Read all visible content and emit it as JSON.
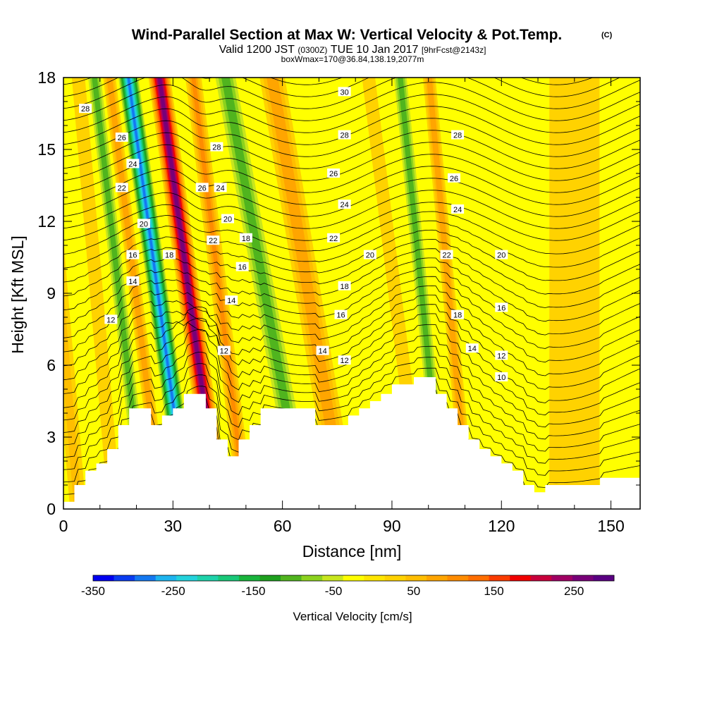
{
  "header": {
    "title": "Wind-Parallel Section at Max W: Vertical Velocity & Pot.Temp.",
    "copyright": "(C)",
    "line2_a": "Valid 1200 JST",
    "line2_b": "(0300Z)",
    "line2_c": "TUE 10 Jan 2017",
    "line2_d": "[9hrFcst@2143z]",
    "line3": "boxWmax=170@36.84,138.19,2077m"
  },
  "chart_data": {
    "type": "heatmap",
    "xlabel": "Distance [nm]",
    "ylabel": "Height [Kft MSL]",
    "xlim": [
      0,
      158
    ],
    "ylim": [
      0,
      18
    ],
    "xticks": [
      0,
      30,
      60,
      90,
      120,
      150
    ],
    "yticks": [
      0,
      3,
      6,
      9,
      12,
      15,
      18
    ],
    "colorbar": {
      "label": "Vertical Velocity [cm/s]",
      "range": [
        -350,
        300
      ],
      "tick_values": [
        -350,
        -250,
        -150,
        -50,
        50,
        150,
        250
      ],
      "tick_labels": [
        "-350",
        "-250",
        "-150",
        "-50",
        "50",
        "150",
        "250"
      ],
      "colors": [
        "#0000f0",
        "#0a3cf0",
        "#1478f0",
        "#1eb4ee",
        "#23d2dc",
        "#1ed2aa",
        "#19c878",
        "#19b43c",
        "#1ea01e",
        "#50b41e",
        "#8cd21e",
        "#c8e61e",
        "#ffff00",
        "#ffe600",
        "#ffd200",
        "#ffbe00",
        "#ffa500",
        "#ff8c00",
        "#ff6e00",
        "#fa3c00",
        "#f00000",
        "#c8003c",
        "#a00064",
        "#780078",
        "#5a0082"
      ]
    },
    "terrain_profile": {
      "x": [
        0,
        3,
        3,
        6,
        6,
        9,
        9,
        12,
        12,
        15,
        15,
        18,
        18,
        21,
        21,
        24,
        24,
        27,
        27,
        30,
        30,
        33,
        33,
        39,
        39,
        42,
        42,
        45,
        45,
        48,
        48,
        51,
        51,
        54,
        54,
        57,
        57,
        66,
        66,
        69,
        69,
        72,
        72,
        75,
        75,
        78,
        78,
        81,
        81,
        84,
        84,
        87,
        87,
        90,
        90,
        93,
        93,
        96,
        96,
        102,
        102,
        105,
        105,
        108,
        108,
        111,
        111,
        114,
        114,
        117,
        117,
        120,
        120,
        123,
        123,
        126,
        126,
        129,
        129,
        132,
        132,
        135,
        135,
        147,
        147,
        158
      ],
      "y": [
        0.3,
        0.3,
        1.0,
        1.0,
        1.6,
        1.6,
        1.9,
        1.9,
        2.5,
        2.5,
        3.5,
        3.5,
        4.2,
        4.2,
        4.2,
        4.2,
        3.5,
        3.5,
        3.9,
        3.9,
        4.2,
        4.2,
        4.8,
        4.8,
        4.2,
        4.2,
        2.9,
        2.9,
        2.2,
        2.2,
        2.9,
        2.9,
        3.5,
        3.5,
        4.2,
        4.2,
        4.2,
        4.2,
        4.2,
        4.2,
        3.5,
        3.5,
        3.5,
        3.5,
        3.5,
        3.5,
        3.9,
        3.9,
        4.2,
        4.2,
        4.5,
        4.5,
        4.8,
        4.8,
        5.2,
        5.2,
        5.2,
        5.2,
        5.5,
        5.5,
        4.8,
        4.8,
        4.2,
        4.2,
        3.5,
        3.5,
        2.9,
        2.9,
        2.5,
        2.5,
        2.2,
        2.2,
        1.9,
        1.9,
        1.6,
        1.6,
        1.0,
        1.0,
        0.7,
        0.7,
        1.0,
        1.0,
        1.0,
        1.0,
        1.3,
        1.3
      ]
    },
    "velocity_bands": [
      {
        "x_center": 4,
        "slope": -0.55,
        "width": 3,
        "w_cm_s": 50
      },
      {
        "x_center": 14,
        "slope": -0.55,
        "width": 3,
        "w_cm_s": 30
      },
      {
        "x_center": 22,
        "slope": -0.75,
        "width": 2.5,
        "w_cm_s": -110
      },
      {
        "x_center": 27,
        "slope": -0.8,
        "width": 2,
        "w_cm_s": 90
      },
      {
        "x_center": 34,
        "slope": -0.9,
        "width": 3,
        "w_cm_s": -280
      },
      {
        "x_center": 42.5,
        "slope": -0.9,
        "width": 3,
        "w_cm_s": 270
      },
      {
        "x_center": 50,
        "slope": -0.8,
        "width": 2.5,
        "w_cm_s": 100
      },
      {
        "x_center": 55,
        "slope": -0.7,
        "width": 3,
        "w_cm_s": -40
      },
      {
        "x_center": 66,
        "slope": -1.2,
        "width": 4,
        "w_cm_s": -110
      },
      {
        "x_center": 77,
        "slope": -1.1,
        "width": 4,
        "w_cm_s": 90
      },
      {
        "x_center": 98,
        "slope": -0.8,
        "width": 3,
        "w_cm_s": 30
      },
      {
        "x_center": 104,
        "slope": -0.65,
        "width": 2.5,
        "w_cm_s": -110
      },
      {
        "x_center": 111,
        "slope": -0.6,
        "width": 2,
        "w_cm_s": 90
      },
      {
        "x_center": 140,
        "slope": 0.0,
        "width": 10,
        "w_cm_s": 15
      }
    ],
    "theta_contour_labels": [
      {
        "text": "30",
        "x": 77,
        "y": 17.4
      },
      {
        "text": "28",
        "x": 6,
        "y": 16.7
      },
      {
        "text": "28",
        "x": 77,
        "y": 15.6
      },
      {
        "text": "28",
        "x": 42,
        "y": 15.1
      },
      {
        "text": "28",
        "x": 108,
        "y": 15.6
      },
      {
        "text": "26",
        "x": 16,
        "y": 15.5
      },
      {
        "text": "26",
        "x": 38,
        "y": 13.4
      },
      {
        "text": "26",
        "x": 74,
        "y": 14.0
      },
      {
        "text": "26",
        "x": 107,
        "y": 13.8
      },
      {
        "text": "24",
        "x": 19,
        "y": 14.4
      },
      {
        "text": "24",
        "x": 43,
        "y": 13.4
      },
      {
        "text": "24",
        "x": 77,
        "y": 12.7
      },
      {
        "text": "24",
        "x": 108,
        "y": 12.5
      },
      {
        "text": "22",
        "x": 16,
        "y": 13.4
      },
      {
        "text": "22",
        "x": 41,
        "y": 11.2
      },
      {
        "text": "22",
        "x": 74,
        "y": 11.3
      },
      {
        "text": "22",
        "x": 105,
        "y": 10.6
      },
      {
        "text": "20",
        "x": 22,
        "y": 11.9
      },
      {
        "text": "20",
        "x": 45,
        "y": 12.1
      },
      {
        "text": "20",
        "x": 84,
        "y": 10.6
      },
      {
        "text": "20",
        "x": 120,
        "y": 10.6
      },
      {
        "text": "18",
        "x": 29,
        "y": 10.6
      },
      {
        "text": "18",
        "x": 50,
        "y": 11.3
      },
      {
        "text": "18",
        "x": 77,
        "y": 9.3
      },
      {
        "text": "18",
        "x": 108,
        "y": 8.1
      },
      {
        "text": "16",
        "x": 19,
        "y": 10.6
      },
      {
        "text": "16",
        "x": 49,
        "y": 10.1
      },
      {
        "text": "16",
        "x": 76,
        "y": 8.1
      },
      {
        "text": "16",
        "x": 120,
        "y": 8.4
      },
      {
        "text": "14",
        "x": 19,
        "y": 9.5
      },
      {
        "text": "14",
        "x": 46,
        "y": 8.7
      },
      {
        "text": "14",
        "x": 71,
        "y": 6.6
      },
      {
        "text": "14",
        "x": 112,
        "y": 6.7
      },
      {
        "text": "12",
        "x": 13,
        "y": 7.9
      },
      {
        "text": "12",
        "x": 44,
        "y": 6.6
      },
      {
        "text": "12",
        "x": 77,
        "y": 6.2
      },
      {
        "text": "12",
        "x": 120,
        "y": 6.4
      },
      {
        "text": "10",
        "x": 120,
        "y": 5.5
      }
    ]
  }
}
